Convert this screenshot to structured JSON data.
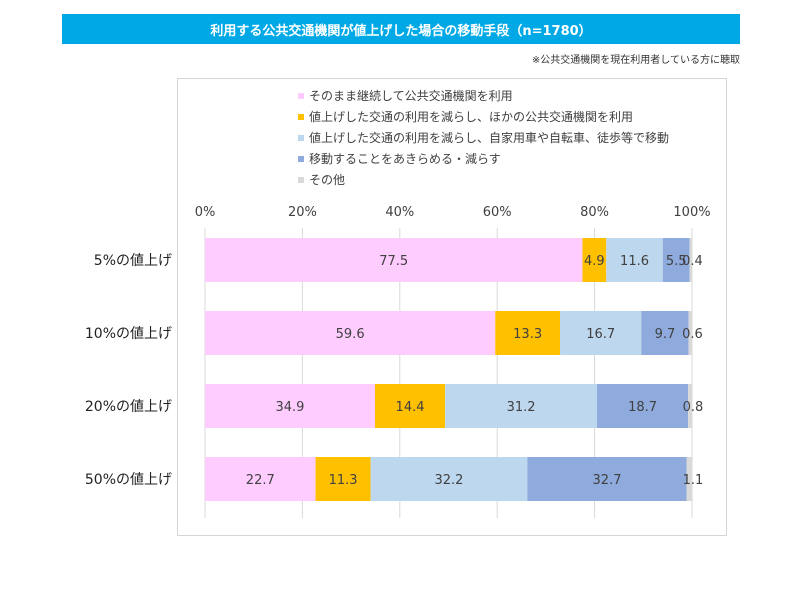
{
  "header": {
    "title": "利用する公共交通機関が値上げした場合の移動手段（n=1780）",
    "note": "※公共交通機関を現在利用者している方に聴取"
  },
  "legend": [
    {
      "label": "そのまま継続して公共交通機関を利用",
      "color": "#FFCCFF"
    },
    {
      "label": "値上げした交通の利用を減らし、ほかの公共交通機関を利用",
      "color": "#FFC000"
    },
    {
      "label": "値上げした交通の利用を減らし、自家用車や自転車、徒歩等で移動",
      "color": "#BDD7EE"
    },
    {
      "label": "移動することをあきらめる・減らす",
      "color": "#8FAADC"
    },
    {
      "label": "その他",
      "color": "#D9D9D9"
    }
  ],
  "chart_data": {
    "type": "bar",
    "orientation": "horizontal",
    "stacked": true,
    "categories": [
      "5%の値上げ",
      "10%の値上げ",
      "20%の値上げ",
      "50%の値上げ"
    ],
    "series": [
      {
        "name": "そのまま継続して公共交通機関を利用",
        "color": "#FFCCFF",
        "values": [
          77.5,
          59.6,
          34.9,
          22.7
        ]
      },
      {
        "name": "値上げした交通の利用を減らし、ほかの公共交通機関を利用",
        "color": "#FFC000",
        "values": [
          4.9,
          13.3,
          14.4,
          11.3
        ]
      },
      {
        "name": "値上げした交通の利用を減らし、自家用車や自転車、徒歩等で移動",
        "color": "#BDD7EE",
        "values": [
          11.6,
          16.7,
          31.2,
          32.2
        ]
      },
      {
        "name": "移動することをあきらめる・減らす",
        "color": "#8FAADC",
        "values": [
          5.5,
          9.7,
          18.7,
          32.7
        ]
      },
      {
        "name": "その他",
        "color": "#D9D9D9",
        "values": [
          0.4,
          0.6,
          0.8,
          1.1
        ]
      }
    ],
    "value_labels": [
      [
        "77.5",
        "4.9",
        "11.6",
        "5.5",
        "0.4"
      ],
      [
        "59.6",
        "13.3",
        "16.7",
        "9.7",
        "0.6"
      ],
      [
        "34.9",
        "14.4",
        "31.2",
        "18.7",
        "0.8"
      ],
      [
        "22.7",
        "11.3",
        "32.2",
        "32.7",
        "1.1"
      ]
    ],
    "x_ticks": [
      "0%",
      "20%",
      "40%",
      "60%",
      "80%",
      "100%"
    ],
    "xlim": [
      0,
      100
    ],
    "grid": true,
    "legend_position": "top"
  }
}
